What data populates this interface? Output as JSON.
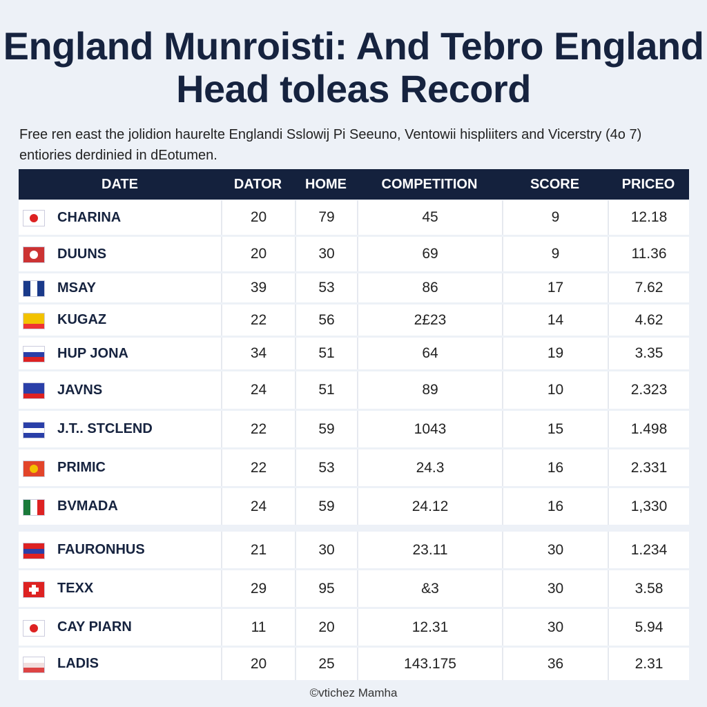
{
  "header": {
    "title_lines": [
      "England Munroisti: And Tebro England",
      "Head toleas Record"
    ],
    "subtitle": "Free ren east the jolidion haurelte Englandi Sslowij Pi Seeuno, Ventowii hispliiters and Vicerstry (4o 7) entiories derdinied in dEotumen."
  },
  "table": {
    "header": [
      "Date",
      "Dator",
      "Home",
      "Competition",
      "Score",
      "Priceo"
    ],
    "rows": [
      {
        "name": "CHARINA",
        "cells": [
          "20",
          "79",
          "45",
          "9",
          "12.18"
        ]
      },
      {
        "name": "DUUNS",
        "cells": [
          "20",
          "30",
          "69",
          "9",
          "11.36"
        ]
      },
      {
        "name": "MSAY",
        "cells": [
          "39",
          "53",
          "86",
          "17",
          "7.62"
        ]
      },
      {
        "name": "KUGAZ",
        "cells": [
          "22",
          "56",
          "2£23",
          "14",
          "4.62"
        ]
      },
      {
        "name": "HUP JONA",
        "cells": [
          "34",
          "51",
          "64",
          "19",
          "3.35"
        ]
      },
      {
        "name": "JAVNS",
        "cells": [
          "24",
          "51",
          "89",
          "10",
          "2.323"
        ]
      },
      {
        "name": "J.T.. STCLEND",
        "cells": [
          "22",
          "59",
          "1043",
          "15",
          "1.498"
        ]
      },
      {
        "name": "PRIMIC",
        "cells": [
          "22",
          "53",
          "24.3",
          "16",
          "2.331"
        ]
      },
      {
        "name": "BVMADA",
        "cells": [
          "24",
          "59",
          "24.12",
          "16",
          "1,330"
        ]
      },
      {
        "name": "FAURONHUS",
        "cells": [
          "21",
          "30",
          "23.11",
          "30",
          "1.234"
        ]
      },
      {
        "name": "TEXX",
        "cells": [
          "29",
          "95",
          "&3",
          "30",
          "3.58"
        ]
      },
      {
        "name": "CAY PIARN",
        "cells": [
          "11",
          "20",
          "12.31",
          "30",
          "5.94"
        ]
      },
      {
        "name": "LADIS",
        "cells": [
          "20",
          "25",
          "143.175",
          "36",
          "2.31"
        ]
      }
    ]
  },
  "footer": "©vtichez Mamha"
}
